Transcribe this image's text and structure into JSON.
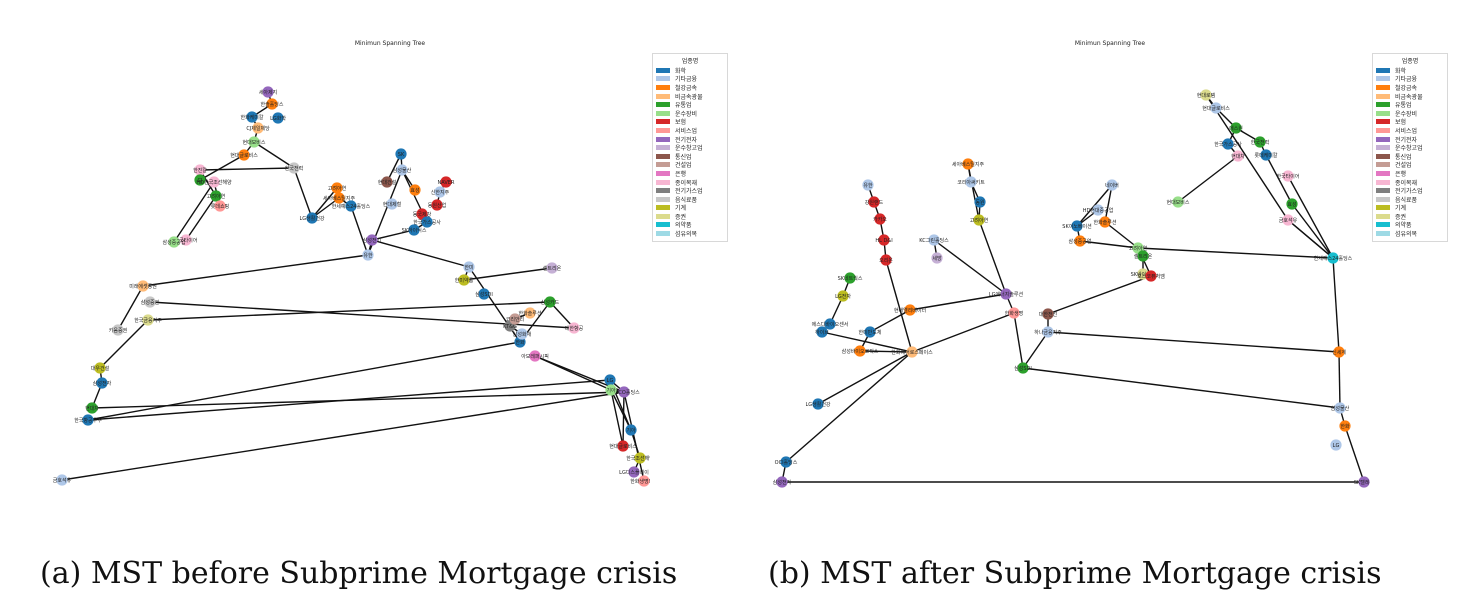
{
  "panels": [
    {
      "title": "Minimun Spanning Tree",
      "caption": "(a) MST before Subprime Mortgage crisis",
      "nodes": [
        {
          "id": "a1",
          "label": "세아제지",
          "cat": 8
        },
        {
          "id": "a2",
          "label": "한솔홀딩스",
          "cat": 2
        },
        {
          "id": "a3",
          "label": "한화케미칼",
          "cat": 0
        },
        {
          "id": "a4",
          "label": "CJ제일제당",
          "cat": 3
        },
        {
          "id": "a5",
          "label": "LG화학",
          "cat": 0
        },
        {
          "id": "a6",
          "label": "현대모비스",
          "cat": 5
        },
        {
          "id": "a7",
          "label": "현대글로비스",
          "cat": 2
        },
        {
          "id": "a8",
          "label": "한국전력",
          "cat": 15
        },
        {
          "id": "a9",
          "label": "한진칼",
          "cat": 13
        },
        {
          "id": "a10",
          "label": "CJ",
          "cat": 4
        },
        {
          "id": "a11",
          "label": "HD한국조선해양",
          "cat": 13
        },
        {
          "id": "a12",
          "label": "고려아연",
          "cat": 4
        },
        {
          "id": "a13",
          "label": "롯데쇼핑",
          "cat": 7
        },
        {
          "id": "a14",
          "label": "한국타이어",
          "cat": 13
        },
        {
          "id": "a15",
          "label": "삼성중공업",
          "cat": 5
        },
        {
          "id": "a16",
          "label": "LG생활건강",
          "cat": 0
        },
        {
          "id": "a17",
          "label": "세아베스틸지주",
          "cat": 2
        },
        {
          "id": "a18",
          "label": "한세예스24홀딩스",
          "cat": 0
        },
        {
          "id": "a19",
          "label": "고려아연",
          "cat": 2
        },
        {
          "id": "a20",
          "label": "유한",
          "cat": 1
        },
        {
          "id": "a21",
          "label": "SK",
          "cat": 0
        },
        {
          "id": "a22",
          "label": "삼성물산",
          "cat": 1
        },
        {
          "id": "a23",
          "label": "현대건설",
          "cat": 10
        },
        {
          "id": "a24",
          "label": "NAVER",
          "cat": 6
        },
        {
          "id": "a25",
          "label": "효성",
          "cat": 2
        },
        {
          "id": "a26",
          "label": "신한지주",
          "cat": 1
        },
        {
          "id": "a27",
          "label": "현대제철",
          "cat": 1
        },
        {
          "id": "a28",
          "label": "동원산업",
          "cat": 6
        },
        {
          "id": "a29",
          "label": "동국제강",
          "cat": 6
        },
        {
          "id": "a30",
          "label": "한국가스공사",
          "cat": 0
        },
        {
          "id": "a31",
          "label": "SK하이닉스",
          "cat": 0
        },
        {
          "id": "a32",
          "label": "삼성전기",
          "cat": 8
        },
        {
          "id": "a33",
          "label": "한미",
          "cat": 1
        },
        {
          "id": "a34",
          "label": "한미약품",
          "cat": 16
        },
        {
          "id": "a35",
          "label": "삼성SDI",
          "cat": 0
        },
        {
          "id": "a36",
          "label": "셀트리온",
          "cat": 9
        },
        {
          "id": "a37",
          "label": "한화",
          "cat": 0
        },
        {
          "id": "a38",
          "label": "삼성화재",
          "cat": 1
        },
        {
          "id": "a39",
          "label": "KT&G",
          "cat": 14
        },
        {
          "id": "a40",
          "label": "코리안리",
          "cat": 11
        },
        {
          "id": "a41",
          "label": "한화솔루션",
          "cat": 3
        },
        {
          "id": "a42",
          "label": "삼성카드",
          "cat": 4
        },
        {
          "id": "a43",
          "label": "대한항공",
          "cat": 13
        },
        {
          "id": "a44",
          "label": "미래에셋증권",
          "cat": 3
        },
        {
          "id": "a45",
          "label": "삼성증권",
          "cat": 15
        },
        {
          "id": "a46",
          "label": "한국금융지주",
          "cat": 17
        },
        {
          "id": "a47",
          "label": "키움증권",
          "cat": 15
        },
        {
          "id": "a48",
          "label": "대우건설",
          "cat": 16
        },
        {
          "id": "a49",
          "label": "삼성전자",
          "cat": 0
        },
        {
          "id": "a50",
          "label": "현대차",
          "cat": 4
        },
        {
          "id": "a51",
          "label": "한국항공우주",
          "cat": 0
        },
        {
          "id": "a52",
          "label": "LG",
          "cat": 0
        },
        {
          "id": "a53",
          "label": "기아",
          "cat": 0
        },
        {
          "id": "a54",
          "label": "한국조선해양",
          "cat": 16
        },
        {
          "id": "a55",
          "label": "LG디스플레이",
          "cat": 8
        },
        {
          "id": "a56",
          "label": "POSCO홀딩스",
          "cat": 8
        },
        {
          "id": "a57",
          "label": "금호석유",
          "cat": 1
        },
        {
          "id": "a58",
          "label": "한화생명보험",
          "cat": 7
        },
        {
          "id": "a59",
          "label": "현대글로비스",
          "cat": 6
        },
        {
          "id": "a60",
          "label": "아모레퍼시픽",
          "cat": 12
        },
        {
          "id": "a61",
          "label": "기아",
          "cat": 5
        }
      ],
      "edges": [
        [
          "a1",
          "a2"
        ],
        [
          "a2",
          "a3"
        ],
        [
          "a3",
          "a4"
        ],
        [
          "a4",
          "a6"
        ],
        [
          "a6",
          "a7"
        ],
        [
          "a7",
          "a10"
        ],
        [
          "a6",
          "a8"
        ],
        [
          "a8",
          "a9"
        ],
        [
          "a9",
          "a12"
        ],
        [
          "a12",
          "a14"
        ],
        [
          "a11",
          "a13"
        ],
        [
          "a11",
          "a15"
        ],
        [
          "a8",
          "a16"
        ],
        [
          "a16",
          "a17"
        ],
        [
          "a16",
          "a19"
        ],
        [
          "a17",
          "a18"
        ],
        [
          "a18",
          "a20"
        ],
        [
          "a20",
          "a22"
        ],
        [
          "a21",
          "a22"
        ],
        [
          "a21",
          "a23"
        ],
        [
          "a22",
          "a25"
        ],
        [
          "a24",
          "a26"
        ],
        [
          "a26",
          "a28"
        ],
        [
          "a22",
          "a30"
        ],
        [
          "a30",
          "a31"
        ],
        [
          "a31",
          "a32"
        ],
        [
          "a20",
          "a32"
        ],
        [
          "a32",
          "a33"
        ],
        [
          "a33",
          "a34"
        ],
        [
          "a34",
          "a36"
        ],
        [
          "a33",
          "a37"
        ],
        [
          "a37",
          "a38"
        ],
        [
          "a38",
          "a39"
        ],
        [
          "a39",
          "a40"
        ],
        [
          "a40",
          "a41"
        ],
        [
          "a37",
          "a42"
        ],
        [
          "a42",
          "a43"
        ],
        [
          "a43",
          "a45"
        ],
        [
          "a42",
          "a46"
        ],
        [
          "a46",
          "a48"
        ],
        [
          "a48",
          "a49"
        ],
        [
          "a49",
          "a50"
        ],
        [
          "a37",
          "a51"
        ],
        [
          "a51",
          "a52"
        ],
        [
          "a52",
          "a53"
        ],
        [
          "a53",
          "a54"
        ],
        [
          "a54",
          "a55"
        ],
        [
          "a50",
          "a56"
        ],
        [
          "a56",
          "a57"
        ],
        [
          "a56",
          "a58"
        ],
        [
          "a56",
          "a59"
        ],
        [
          "a56",
          "a60"
        ],
        [
          "a52",
          "a56"
        ],
        [
          "a53",
          "a61"
        ],
        [
          "a56",
          "a61"
        ],
        [
          "a61",
          "a59"
        ],
        [
          "a61",
          "a60"
        ],
        [
          "a20",
          "a44"
        ],
        [
          "a44",
          "a47"
        ]
      ]
    },
    {
      "title": "Minimun Spanning Tree",
      "caption": "(b) MST after Subprime Mortgage crisis",
      "nodes": [
        {
          "id": "b1",
          "label": "현대로템",
          "cat": 17
        },
        {
          "id": "b2",
          "label": "현대글로비스",
          "cat": 1
        },
        {
          "id": "b3",
          "label": "에스원",
          "cat": 4
        },
        {
          "id": "b4",
          "label": "한국가스공사",
          "cat": 0
        },
        {
          "id": "b5",
          "label": "한국전력",
          "cat": 4
        },
        {
          "id": "b6",
          "label": "현대차",
          "cat": 13
        },
        {
          "id": "b7",
          "label": "롯데케미칼",
          "cat": 0
        },
        {
          "id": "b8",
          "label": "현대모비스",
          "cat": 5
        },
        {
          "id": "b9",
          "label": "효성",
          "cat": 4
        },
        {
          "id": "b10",
          "label": "한세예스24홀딩스",
          "cat": 18
        },
        {
          "id": "b11",
          "label": "금호석유",
          "cat": 13
        },
        {
          "id": "b12",
          "label": "세아베스틸지주",
          "cat": 2
        },
        {
          "id": "b13",
          "label": "코리아써키트",
          "cat": 1
        },
        {
          "id": "b14",
          "label": "동원",
          "cat": 0
        },
        {
          "id": "b15",
          "label": "고려아연",
          "cat": 16
        },
        {
          "id": "b16",
          "label": "유한",
          "cat": 1
        },
        {
          "id": "b17",
          "label": "강원랜드",
          "cat": 6
        },
        {
          "id": "b18",
          "label": "KC그린홀딩스",
          "cat": 1
        },
        {
          "id": "b19",
          "label": "세방",
          "cat": 9
        },
        {
          "id": "b20",
          "label": "카카오",
          "cat": 6
        },
        {
          "id": "b21",
          "label": "HL D&I",
          "cat": 6
        },
        {
          "id": "b22",
          "label": "오리온",
          "cat": 6
        },
        {
          "id": "b23",
          "label": "SK네트웍스",
          "cat": 4
        },
        {
          "id": "b24",
          "label": "LG전자",
          "cat": 16
        },
        {
          "id": "b25",
          "label": "에스디바이오센서",
          "cat": 0
        },
        {
          "id": "b26",
          "label": "하이브",
          "cat": 0
        },
        {
          "id": "b27",
          "label": "LG에너지솔루션",
          "cat": 8
        },
        {
          "id": "b28",
          "label": "현대엘리베이터",
          "cat": 2
        },
        {
          "id": "b29",
          "label": "한미반도체",
          "cat": 0
        },
        {
          "id": "b30",
          "label": "삼성바이오로직스",
          "cat": 2
        },
        {
          "id": "b31",
          "label": "한화에어로스페이스",
          "cat": 3
        },
        {
          "id": "b32",
          "label": "LG생활건강",
          "cat": 0
        },
        {
          "id": "b33",
          "label": "네이버",
          "cat": 1
        },
        {
          "id": "b34",
          "label": "HD현대중공업",
          "cat": 1
        },
        {
          "id": "b35",
          "label": "SK이노베이션",
          "cat": 0
        },
        {
          "id": "b36",
          "label": "한화솔루션",
          "cat": 2
        },
        {
          "id": "b37",
          "label": "삼성중공업",
          "cat": 2
        },
        {
          "id": "b38",
          "label": "고려아연",
          "cat": 5
        },
        {
          "id": "b39",
          "label": "셀트리온",
          "cat": 4
        },
        {
          "id": "b40",
          "label": "SK바이오팜",
          "cat": 17
        },
        {
          "id": "b41",
          "label": "포스코퓨처엠",
          "cat": 6
        },
        {
          "id": "b42",
          "label": "대한전선",
          "cat": 10
        },
        {
          "id": "b43",
          "label": "하나금융지주",
          "cat": 1
        },
        {
          "id": "b44",
          "label": "한화생명",
          "cat": 7
        },
        {
          "id": "b45",
          "label": "삼성SDI",
          "cat": 4
        },
        {
          "id": "b46",
          "label": "OCI홀딩스",
          "cat": 0
        },
        {
          "id": "b47",
          "label": "삼성전자",
          "cat": 8
        },
        {
          "id": "b48",
          "label": "LG",
          "cat": 1
        },
        {
          "id": "b49",
          "label": "신세계",
          "cat": 2
        },
        {
          "id": "b50",
          "label": "삼성물산",
          "cat": 1
        },
        {
          "id": "b51",
          "label": "한화",
          "cat": 2
        },
        {
          "id": "b52",
          "label": "SK텔레콤",
          "cat": 8
        },
        {
          "id": "b53",
          "label": "한국타이어",
          "cat": 13
        }
      ],
      "edges": [
        [
          "b1",
          "b2"
        ],
        [
          "b2",
          "b3"
        ],
        [
          "b3",
          "b4"
        ],
        [
          "b4",
          "b6"
        ],
        [
          "b3",
          "b5"
        ],
        [
          "b5",
          "b7"
        ],
        [
          "b6",
          "b8"
        ],
        [
          "b7",
          "b9"
        ],
        [
          "b1",
          "b11"
        ],
        [
          "b9",
          "b10"
        ],
        [
          "b11",
          "b10"
        ],
        [
          "b12",
          "b13"
        ],
        [
          "b13",
          "b14"
        ],
        [
          "b14",
          "b15"
        ],
        [
          "b12",
          "b15"
        ],
        [
          "b16",
          "b17"
        ],
        [
          "b17",
          "b20"
        ],
        [
          "b20",
          "b21"
        ],
        [
          "b21",
          "b22"
        ],
        [
          "b22",
          "b31"
        ],
        [
          "b18",
          "b19"
        ],
        [
          "b18",
          "b27"
        ],
        [
          "b23",
          "b24"
        ],
        [
          "b24",
          "b25"
        ],
        [
          "b25",
          "b26"
        ],
        [
          "b26",
          "b31"
        ],
        [
          "b28",
          "b29"
        ],
        [
          "b29",
          "b30"
        ],
        [
          "b30",
          "b31"
        ],
        [
          "b31",
          "b32"
        ],
        [
          "b31",
          "b46"
        ],
        [
          "b46",
          "b47"
        ],
        [
          "b31",
          "b44"
        ],
        [
          "b44",
          "b45"
        ],
        [
          "b15",
          "b27"
        ],
        [
          "b27",
          "b28"
        ],
        [
          "b27",
          "b44"
        ],
        [
          "b33",
          "b35"
        ],
        [
          "b34",
          "b35"
        ],
        [
          "b35",
          "b37"
        ],
        [
          "b33",
          "b36"
        ],
        [
          "b36",
          "b38"
        ],
        [
          "b37",
          "b38"
        ],
        [
          "b38",
          "b39"
        ],
        [
          "b39",
          "b40"
        ],
        [
          "b38",
          "b41"
        ],
        [
          "b41",
          "b42"
        ],
        [
          "b42",
          "b43"
        ],
        [
          "b43",
          "b45"
        ],
        [
          "b43",
          "b49"
        ],
        [
          "b10",
          "b49"
        ],
        [
          "b49",
          "b50"
        ],
        [
          "b50",
          "b51"
        ],
        [
          "b51",
          "b52"
        ],
        [
          "b47",
          "b52"
        ],
        [
          "b10",
          "b53"
        ],
        [
          "b45",
          "b50"
        ],
        [
          "b10",
          "b11"
        ],
        [
          "b38",
          "b10"
        ]
      ]
    }
  ],
  "legend": {
    "title": "업종명",
    "items": [
      {
        "label": "화학",
        "color": "#1f77b4"
      },
      {
        "label": "기타금융",
        "color": "#aec7e8"
      },
      {
        "label": "철강금속",
        "color": "#ff7f0e"
      },
      {
        "label": "비금속광물",
        "color": "#ffbb78"
      },
      {
        "label": "유통업",
        "color": "#2ca02c"
      },
      {
        "label": "운수장비",
        "color": "#98df8a"
      },
      {
        "label": "보험",
        "color": "#d62728"
      },
      {
        "label": "서비스업",
        "color": "#ff9896"
      },
      {
        "label": "전기전자",
        "color": "#9467bd"
      },
      {
        "label": "운수창고업",
        "color": "#c5b0d5"
      },
      {
        "label": "통신업",
        "color": "#8c564b"
      },
      {
        "label": "건설업",
        "color": "#c49c94"
      },
      {
        "label": "은행",
        "color": "#e377c2"
      },
      {
        "label": "종이목재",
        "color": "#f7b6d2"
      },
      {
        "label": "전기가스업",
        "color": "#7f7f7f"
      },
      {
        "label": "음식료품",
        "color": "#c7c7c7"
      },
      {
        "label": "기계",
        "color": "#bcbd22"
      },
      {
        "label": "증권",
        "color": "#dbdb8d"
      },
      {
        "label": "의약품",
        "color": "#17becf"
      },
      {
        "label": "섬유의복",
        "color": "#9edae5"
      }
    ]
  }
}
